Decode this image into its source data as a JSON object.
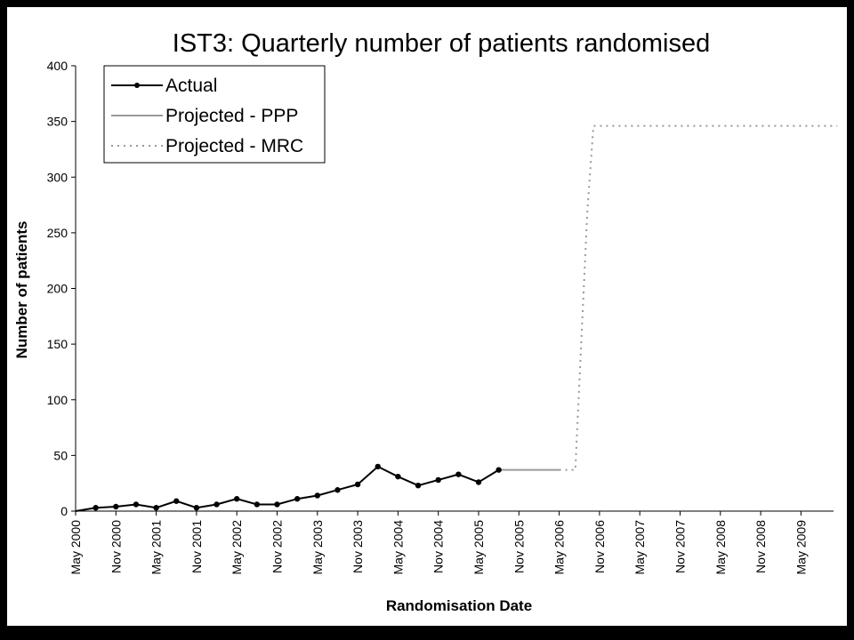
{
  "chart_data": {
    "type": "line",
    "title": "IST3: Quarterly number of patients randomised",
    "xlabel": "Randomisation Date",
    "ylabel": "Number of patients",
    "ylim": [
      0,
      400
    ],
    "yticks": [
      0,
      50,
      100,
      150,
      200,
      250,
      300,
      350,
      400
    ],
    "xtick_labels": [
      "May 2000",
      "Nov 2000",
      "May 2001",
      "Nov 2001",
      "May 2002",
      "Nov 2002",
      "May 2003",
      "Nov 2003",
      "May 2004",
      "Nov 2004",
      "May 2005",
      "Nov 2005",
      "May 2006",
      "Nov 2006",
      "May 2007",
      "Nov 2007",
      "May 2008",
      "Nov 2008",
      "May 2009"
    ],
    "grid": false,
    "legend_position": "top-left",
    "series": [
      {
        "name": "Actual",
        "style": "solid-markers",
        "color": "#000000",
        "x": [
          0,
          0.5,
          1,
          1.5,
          2,
          2.5,
          3,
          3.5,
          4,
          4.5,
          5,
          5.5,
          6,
          6.5,
          7,
          7.5,
          8,
          8.5,
          9,
          9.5,
          10
        ],
        "values": [
          0,
          3,
          4,
          6,
          3,
          9,
          3,
          6,
          11,
          6,
          6,
          11,
          14,
          19,
          24,
          40,
          31,
          23,
          28,
          33,
          26
        ]
      },
      {
        "name": "Projected - PPP",
        "style": "solid-gray",
        "color": "#999999",
        "x": [
          10.5,
          11,
          11.5,
          12
        ],
        "values": [
          37,
          37,
          37,
          37
        ]
      },
      {
        "name": "Projected - MRC",
        "style": "dotted-gray",
        "color": "#999999",
        "x": [
          12,
          12.4,
          12.7,
          12.85,
          13,
          14,
          15,
          16,
          17,
          18,
          18.9
        ],
        "values": [
          37,
          37,
          270,
          346,
          346,
          346,
          346,
          346,
          346,
          346,
          346
        ]
      }
    ],
    "actual_last_point": {
      "x": 10.5,
      "value": 37
    }
  }
}
